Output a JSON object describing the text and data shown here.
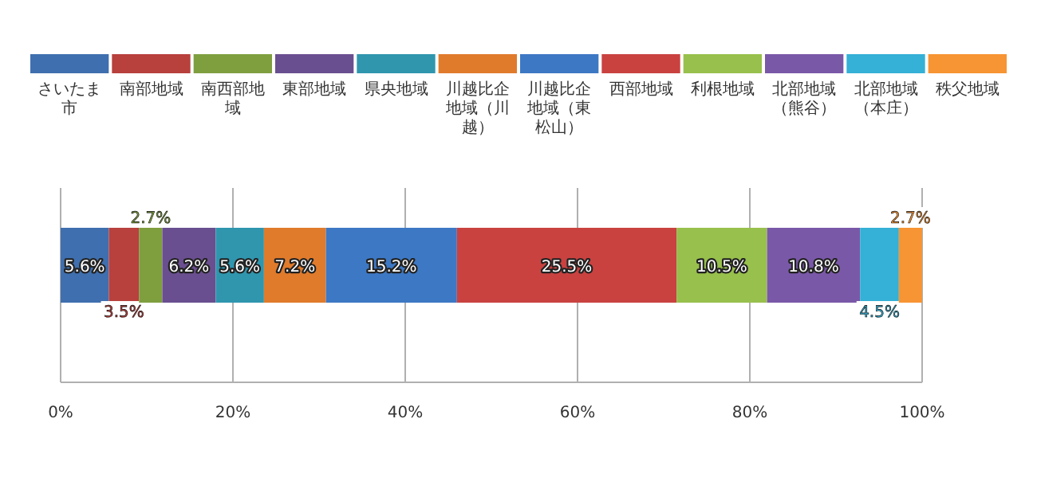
{
  "chart_data": {
    "type": "bar",
    "orientation": "horizontal",
    "stacked": true,
    "legend": "top",
    "grid": "x",
    "tick_labels": "x",
    "categories": [
      null
    ],
    "xlim": [
      0,
      100
    ],
    "xticks": [
      {
        "value": 0,
        "label": "0%"
      },
      {
        "value": 20,
        "label": "20%"
      },
      {
        "value": 40,
        "label": "40%"
      },
      {
        "value": 60,
        "label": "60%"
      },
      {
        "value": 80,
        "label": "80%"
      },
      {
        "value": 100,
        "label": "100%"
      }
    ],
    "series": [
      {
        "name": "さいたま市",
        "color": "#3f6fae",
        "values": [
          5.6
        ],
        "value_labels": [
          "5.6%"
        ]
      },
      {
        "name": "南部地域",
        "color": "#b8403d",
        "values": [
          3.5
        ],
        "value_labels": [
          "3.5%"
        ]
      },
      {
        "name": "南西部地域",
        "color": "#7f9f3f",
        "values": [
          2.7
        ],
        "value_labels": [
          "2.7%"
        ]
      },
      {
        "name": "東部地域",
        "color": "#6a4f90",
        "values": [
          6.2
        ],
        "value_labels": [
          "6.2%"
        ]
      },
      {
        "name": "県央地域",
        "color": "#2f96ae",
        "values": [
          5.6
        ],
        "value_labels": [
          "5.6%"
        ]
      },
      {
        "name": "川越比企地域（川越）",
        "color": "#e07b2c",
        "values": [
          7.2
        ],
        "value_labels": [
          "7.2%"
        ]
      },
      {
        "name": "川越比企地域（東松山）",
        "color": "#3d78c4",
        "values": [
          15.2
        ],
        "value_labels": [
          "15.2%"
        ]
      },
      {
        "name": "西部地域",
        "color": "#c94240",
        "values": [
          25.5
        ],
        "value_labels": [
          "25.5%"
        ]
      },
      {
        "name": "利根地域",
        "color": "#98c04c",
        "values": [
          10.5
        ],
        "value_labels": [
          "10.5%"
        ]
      },
      {
        "name": "北部地域（熊谷）",
        "color": "#7a58a8",
        "values": [
          10.8
        ],
        "value_labels": [
          "10.8%"
        ]
      },
      {
        "name": "北部地域（本庄）",
        "color": "#35b0d6",
        "values": [
          4.5
        ],
        "value_labels": [
          "4.5%"
        ]
      },
      {
        "name": "秩父地域",
        "color": "#f79433",
        "values": [
          2.7
        ],
        "value_labels": [
          "2.7%"
        ]
      }
    ]
  }
}
